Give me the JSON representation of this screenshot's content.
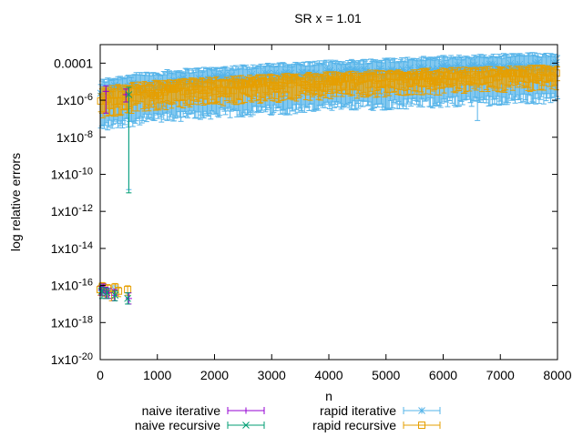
{
  "chart_data": {
    "type": "line",
    "title": "SR x = 1.01",
    "xlabel": "n",
    "ylabel": "log relative errors",
    "xlim": [
      0,
      8000
    ],
    "ylim": [
      1e-20,
      0.001
    ],
    "yscale": "log",
    "grid": false,
    "legend_position": "bottom",
    "x_ticks": [
      "0",
      "1000",
      "2000",
      "3000",
      "4000",
      "5000",
      "6000",
      "7000",
      "8000"
    ],
    "y_ticks": [
      {
        "value": 1e-20,
        "label": "1x10-20",
        "base": "1x10",
        "exp": "-20"
      },
      {
        "value": 1e-18,
        "label": "1x10-18",
        "base": "1x10",
        "exp": "-18"
      },
      {
        "value": 1e-16,
        "label": "1x10-16",
        "base": "1x10",
        "exp": "-16"
      },
      {
        "value": 1e-14,
        "label": "1x10-14",
        "base": "1x10",
        "exp": "-14"
      },
      {
        "value": 1e-12,
        "label": "1x10-12",
        "base": "1x10",
        "exp": "-12"
      },
      {
        "value": 1e-10,
        "label": "1x10-10",
        "base": "1x10",
        "exp": "-10"
      },
      {
        "value": 1e-08,
        "label": "1x10-8",
        "base": "1x10",
        "exp": "-8"
      },
      {
        "value": 1e-06,
        "label": "1x10-6",
        "base": "1x10",
        "exp": "-6"
      },
      {
        "value": 0.0001,
        "label": "0.0001",
        "base": "0.0001",
        "exp": ""
      }
    ],
    "series": [
      {
        "name": "naive iterative",
        "color": "#9400d3",
        "marker": "plus",
        "points": [
          {
            "x": 20,
            "y": 6e-17,
            "lo": 3e-17,
            "hi": 9e-17
          },
          {
            "x": 60,
            "y": 8e-17,
            "lo": 4e-17,
            "hi": 1.2e-16
          },
          {
            "x": 100,
            "y": 5e-17,
            "lo": 2e-17,
            "hi": 8e-17
          },
          {
            "x": 150,
            "y": 4e-17,
            "lo": 2e-17,
            "hi": 7e-17
          },
          {
            "x": 250,
            "y": 3e-17,
            "lo": 1.5e-17,
            "hi": 6e-17
          },
          {
            "x": 500,
            "y": 2e-17,
            "lo": 1e-17,
            "hi": 4e-17
          },
          {
            "x": 100,
            "y": 3e-06,
            "lo": 2e-07,
            "hi": 6e-06
          },
          {
            "x": 450,
            "y": 2e-06,
            "lo": 8e-07,
            "hi": 4e-06
          }
        ]
      },
      {
        "name": "naive recursive",
        "color": "#009e73",
        "marker": "cross",
        "points": [
          {
            "x": 30,
            "y": 5e-17,
            "lo": 2e-17,
            "hi": 8e-17
          },
          {
            "x": 120,
            "y": 4e-17,
            "lo": 2e-17,
            "hi": 7e-17
          },
          {
            "x": 260,
            "y": 3e-17,
            "lo": 1.5e-17,
            "hi": 5e-17
          },
          {
            "x": 480,
            "y": 2e-17,
            "lo": 1e-17,
            "hi": 4e-17
          },
          {
            "x": 500,
            "y": 2e-06,
            "lo": 1e-11,
            "hi": 5e-06
          }
        ]
      }
    ],
    "band_series": [
      {
        "name": "rapid iterative",
        "color": "#56b4e9",
        "marker": "asterisk",
        "y_start": 2e-06,
        "y_end": 7e-05,
        "upper_start": 8e-06,
        "upper_end": 0.0003,
        "lower_start": 2e-08,
        "lower_end": 1e-06,
        "deep_dips": [
          {
            "x": 500,
            "lo": 1.5e-11
          },
          {
            "x": 6600,
            "lo": 8e-08
          },
          {
            "x": 3200,
            "lo": 2e-07
          },
          {
            "x": 4400,
            "lo": 3e-07
          }
        ],
        "low_cluster": [
          {
            "x": 20,
            "y": 7e-17
          },
          {
            "x": 80,
            "y": 5e-17
          },
          {
            "x": 260,
            "y": 6e-17
          }
        ]
      },
      {
        "name": "rapid recursive",
        "color": "#e69f00",
        "marker": "square",
        "y_start": 8e-07,
        "y_end": 2.5e-05,
        "upper_start": 3e-06,
        "upper_end": 6e-05,
        "lower_start": 1e-07,
        "lower_end": 5e-06,
        "deep_dips": [],
        "low_cluster": [
          {
            "x": 0,
            "y": 6e-17
          },
          {
            "x": 40,
            "y": 9e-17
          },
          {
            "x": 90,
            "y": 4e-17
          },
          {
            "x": 130,
            "y": 7e-17
          },
          {
            "x": 200,
            "y": 3e-17
          },
          {
            "x": 260,
            "y": 8e-17
          },
          {
            "x": 320,
            "y": 5e-17
          },
          {
            "x": 480,
            "y": 6e-17
          }
        ]
      }
    ]
  }
}
